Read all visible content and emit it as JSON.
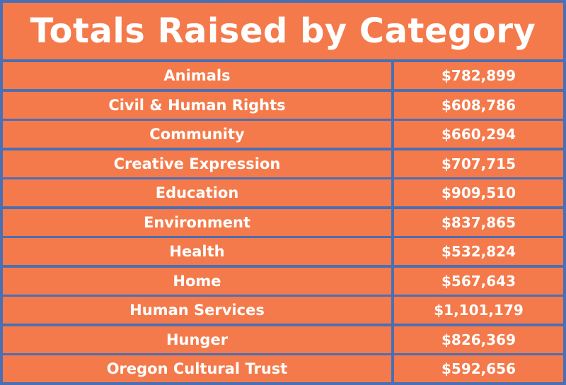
{
  "title": "Totals Raised by Category",
  "colors": {
    "background_border": "#4a6fb3",
    "cell_fill": "#f47a4b",
    "text": "#ffffff"
  },
  "chart_data": {
    "type": "table",
    "title": "Totals Raised by Category",
    "rows": [
      {
        "category": "Animals",
        "value": "$782,899"
      },
      {
        "category": "Civil & Human Rights",
        "value": "$608,786"
      },
      {
        "category": "Community",
        "value": "$660,294"
      },
      {
        "category": "Creative Expression",
        "value": "$707,715"
      },
      {
        "category": "Education",
        "value": "$909,510"
      },
      {
        "category": "Environment",
        "value": "$837,865"
      },
      {
        "category": "Health",
        "value": "$532,824"
      },
      {
        "category": "Home",
        "value": "$567,643"
      },
      {
        "category": "Human Services",
        "value": "$1,101,179"
      },
      {
        "category": "Hunger",
        "value": "$826,369"
      },
      {
        "category": "Oregon Cultural Trust",
        "value": "$592,656"
      }
    ]
  }
}
